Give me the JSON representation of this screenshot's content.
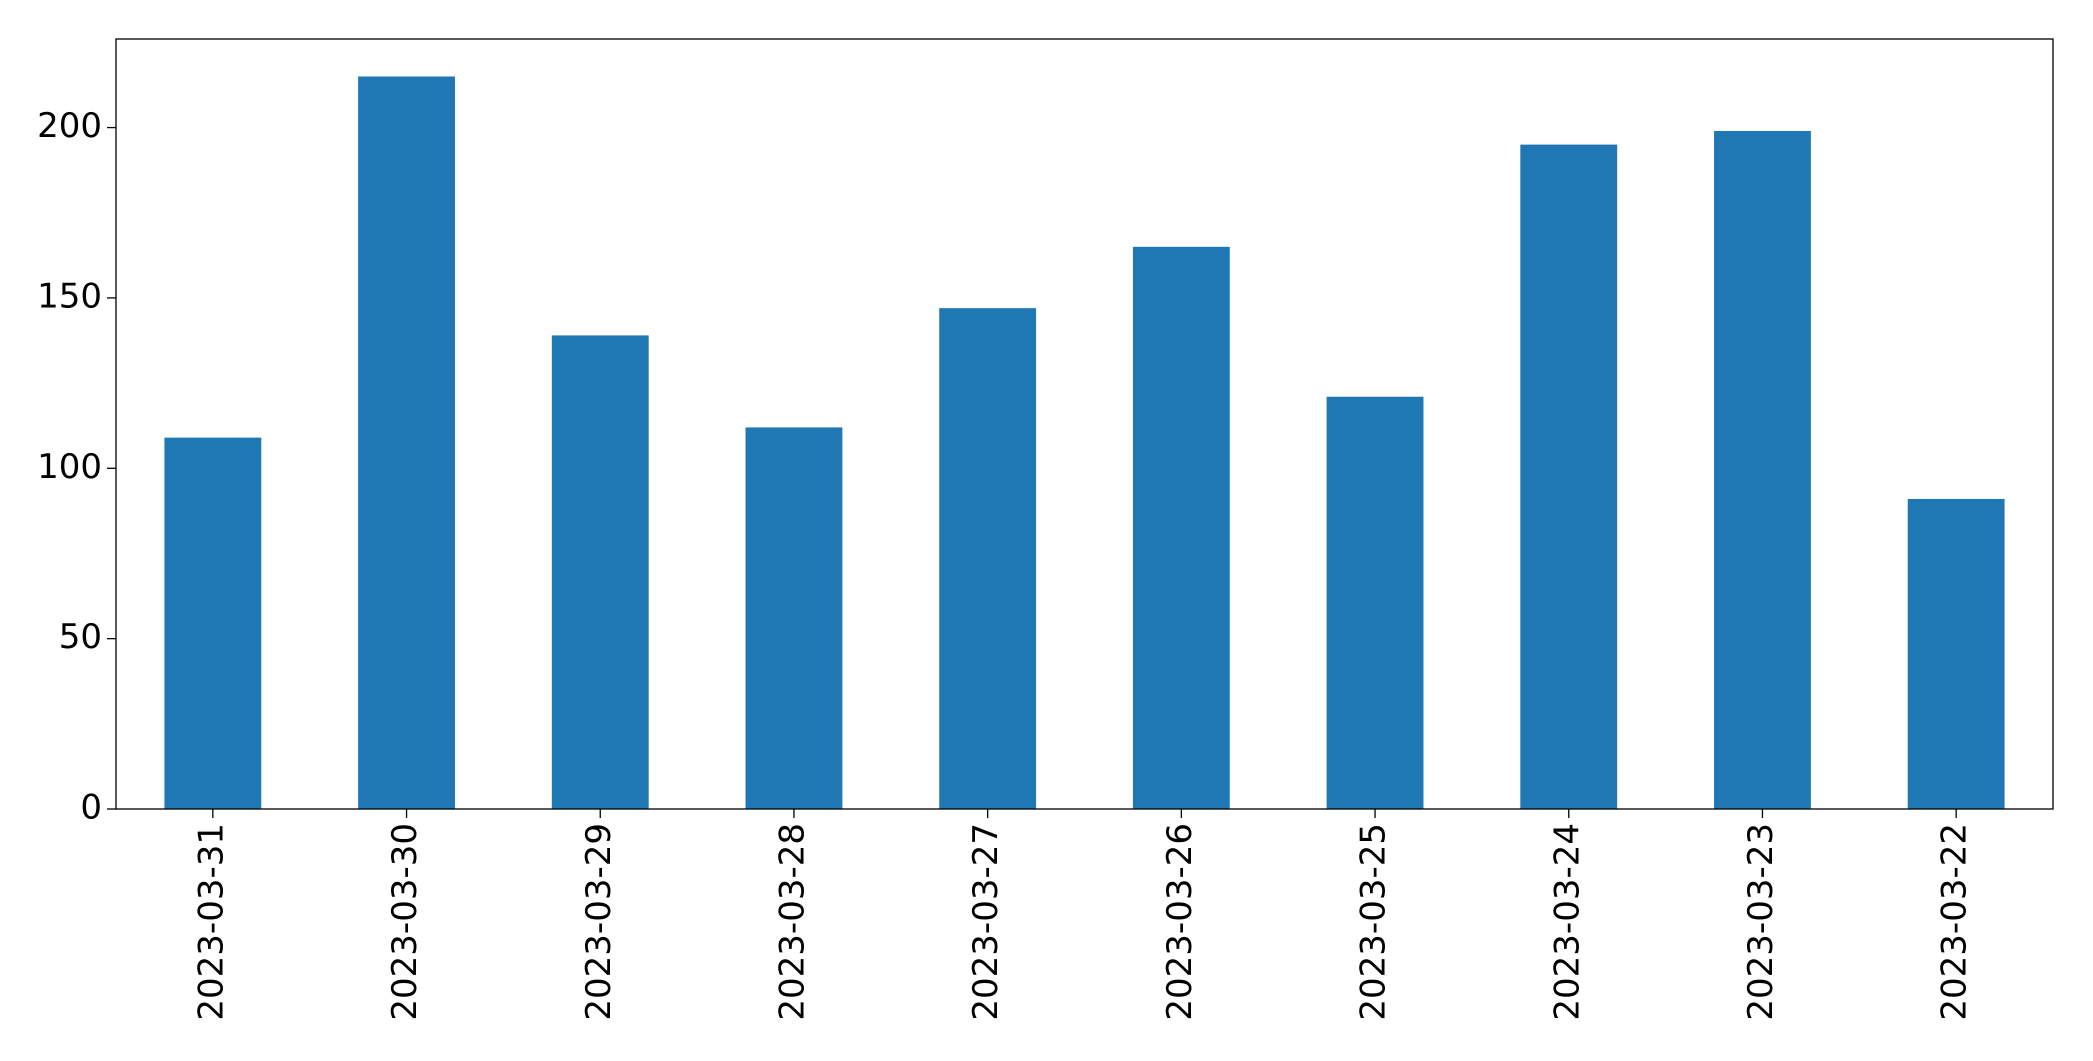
{
  "chart_data": {
    "type": "bar",
    "categories": [
      "2023-03-31",
      "2023-03-30",
      "2023-03-29",
      "2023-03-28",
      "2023-03-27",
      "2023-03-26",
      "2023-03-25",
      "2023-03-24",
      "2023-03-23",
      "2023-03-22"
    ],
    "values": [
      109,
      215,
      139,
      112,
      147,
      165,
      121,
      195,
      199,
      91
    ],
    "color": "#1f77b4",
    "ylim": [
      0,
      226
    ],
    "yticks": [
      0,
      50,
      100,
      150,
      200
    ],
    "grid": false
  }
}
